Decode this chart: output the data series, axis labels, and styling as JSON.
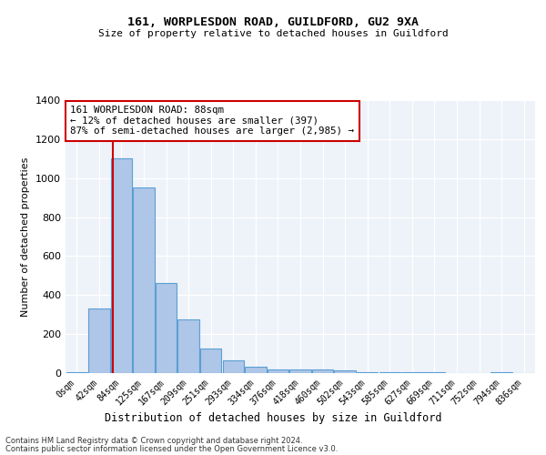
{
  "title1": "161, WORPLESDON ROAD, GUILDFORD, GU2 9XA",
  "title2": "Size of property relative to detached houses in Guildford",
  "xlabel": "Distribution of detached houses by size in Guildford",
  "ylabel": "Number of detached properties",
  "bin_labels": [
    "0sqm",
    "42sqm",
    "84sqm",
    "125sqm",
    "167sqm",
    "209sqm",
    "251sqm",
    "293sqm",
    "334sqm",
    "376sqm",
    "418sqm",
    "460sqm",
    "502sqm",
    "543sqm",
    "585sqm",
    "627sqm",
    "669sqm",
    "711sqm",
    "752sqm",
    "794sqm",
    "836sqm"
  ],
  "bar_values": [
    5,
    330,
    1100,
    950,
    460,
    275,
    125,
    65,
    35,
    20,
    20,
    20,
    12,
    5,
    5,
    5,
    5,
    0,
    0,
    5,
    0
  ],
  "bar_color": "#aec6e8",
  "bar_edge_color": "#5a9fd4",
  "vline_color": "#cc0000",
  "annotation_text": "161 WORPLESDON ROAD: 88sqm\n← 12% of detached houses are smaller (397)\n87% of semi-detached houses are larger (2,985) →",
  "annotation_box_color": "#ffffff",
  "annotation_box_edge": "#cc0000",
  "ylim": [
    0,
    1400
  ],
  "yticks": [
    0,
    200,
    400,
    600,
    800,
    1000,
    1200,
    1400
  ],
  "background_color": "#eef2f9",
  "footer1": "Contains HM Land Registry data © Crown copyright and database right 2024.",
  "footer2": "Contains public sector information licensed under the Open Government Licence v3.0."
}
